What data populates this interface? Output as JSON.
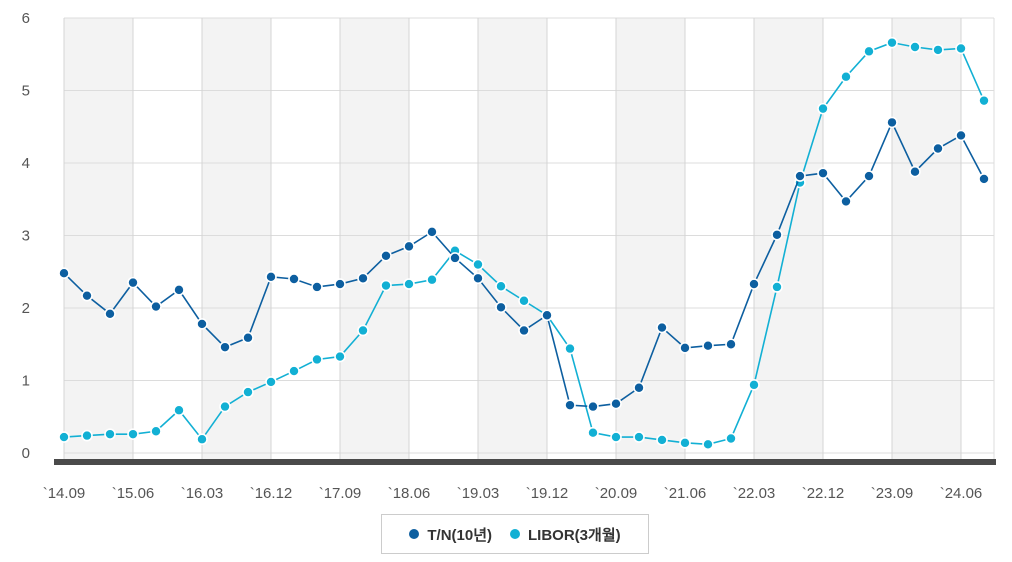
{
  "chart_data": {
    "type": "line",
    "title": "",
    "xlabel": "",
    "ylabel": "",
    "ylim": [
      0,
      6
    ],
    "yticks": [
      0,
      1,
      2,
      3,
      4,
      5,
      6
    ],
    "x_tick_labels": [
      "`14.09",
      "`15.06",
      "`16.03",
      "`16.12",
      "`17.09",
      "`18.06",
      "`19.03",
      "`19.12",
      "`20.09",
      "`21.06",
      "`22.03",
      "`22.12",
      "`23.09",
      "`24.06"
    ],
    "grid": true,
    "legend_position": "bottom-center",
    "series": [
      {
        "name": "T/N(10년)",
        "color": "#0d5fa0",
        "values": [
          2.48,
          2.17,
          1.92,
          2.35,
          2.02,
          2.25,
          1.78,
          1.46,
          1.59,
          2.43,
          2.4,
          2.29,
          2.33,
          2.41,
          2.72,
          2.85,
          3.05,
          2.69,
          2.41,
          2.01,
          1.69,
          1.9,
          0.66,
          0.64,
          0.68,
          0.9,
          1.73,
          1.45,
          1.48,
          1.5,
          2.33,
          3.01,
          3.82,
          3.86,
          3.47,
          3.82,
          4.56,
          3.88,
          4.2,
          4.38,
          3.78
        ]
      },
      {
        "name": "LIBOR(3개월)",
        "color": "#12b0d4",
        "values": [
          0.22,
          0.24,
          0.26,
          0.26,
          0.3,
          0.59,
          0.19,
          0.64,
          0.84,
          0.98,
          1.13,
          1.29,
          1.33,
          1.69,
          2.31,
          2.33,
          2.39,
          2.79,
          2.6,
          2.3,
          2.1,
          1.9,
          1.44,
          0.28,
          0.22,
          0.22,
          0.18,
          0.14,
          0.12,
          0.2,
          0.94,
          2.29,
          3.73,
          4.75,
          5.19,
          5.54,
          5.66,
          5.6,
          5.56,
          5.58,
          4.86
        ]
      }
    ]
  }
}
